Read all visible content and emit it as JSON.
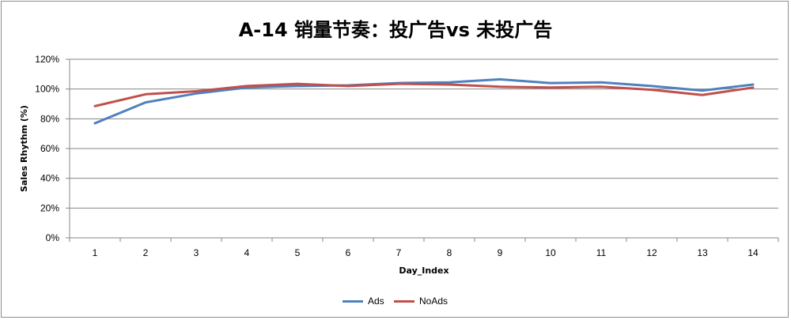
{
  "chart_data": {
    "type": "line",
    "title": "A-14 销量节奏：投广告vs 未投广告",
    "xlabel": "Day_Index",
    "ylabel": "Sales Rhythm (%)",
    "categories": [
      "1",
      "2",
      "3",
      "4",
      "5",
      "6",
      "7",
      "8",
      "9",
      "10",
      "11",
      "12",
      "13",
      "14"
    ],
    "ylim": [
      0,
      120
    ],
    "yticks": [
      "0%",
      "20%",
      "40%",
      "60%",
      "80%",
      "100%",
      "120%"
    ],
    "grid": true,
    "legend_position": "bottom",
    "series": [
      {
        "name": "Ads",
        "color": "#4f81bd",
        "values": [
          77,
          91,
          97,
          101,
          102,
          102.5,
          104,
          104.5,
          106.5,
          104,
          104.5,
          102,
          99,
          103
        ]
      },
      {
        "name": "NoAds",
        "color": "#c0504d",
        "values": [
          88.5,
          96.5,
          98.5,
          102,
          103.5,
          102,
          103.5,
          103,
          101.5,
          101,
          101.5,
          99.5,
          96,
          101
        ]
      }
    ]
  }
}
